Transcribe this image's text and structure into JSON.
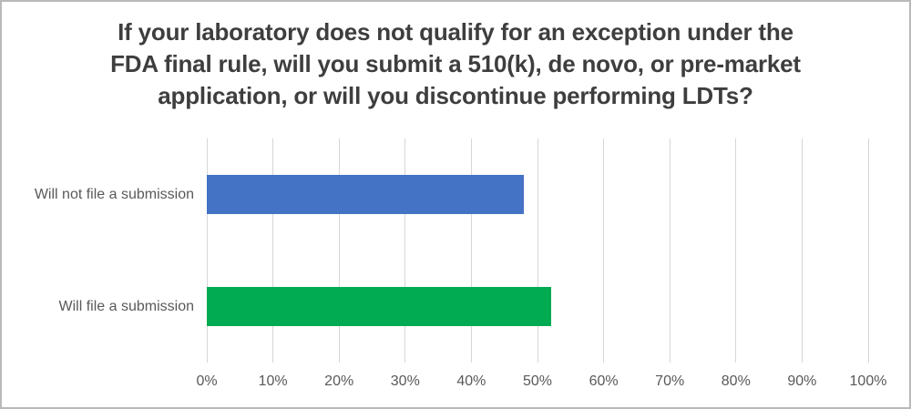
{
  "title": {
    "lines": [
      "If your laboratory does not qualify for an exception under the",
      "FDA final rule, will you submit a 510(k), de novo, or pre-market",
      "application, or will you discontinue performing LDTs?"
    ],
    "color": "#3e3e3e"
  },
  "chart_data": {
    "type": "bar",
    "orientation": "horizontal",
    "title": "If your laboratory does not qualify for an exception under the FDA final rule, will you submit a 510(k), de novo, or pre-market application, or will you discontinue performing LDTs?",
    "categories": [
      "Will not file a submission",
      "Will file a submission"
    ],
    "values": [
      48,
      52
    ],
    "value_unit": "%",
    "bar_colors": [
      "#4472c4",
      "#00ab52"
    ],
    "xlabel": "",
    "ylabel": "",
    "xlim": [
      0,
      100
    ],
    "xticks": [
      "0%",
      "10%",
      "20%",
      "30%",
      "40%",
      "50%",
      "60%",
      "70%",
      "80%",
      "90%",
      "100%"
    ],
    "xtick_values": [
      0,
      10,
      20,
      30,
      40,
      50,
      60,
      70,
      80,
      90,
      100
    ],
    "grid": true,
    "gridline_color": "#d6d6d6",
    "label_color": "#595959",
    "legend": null
  }
}
